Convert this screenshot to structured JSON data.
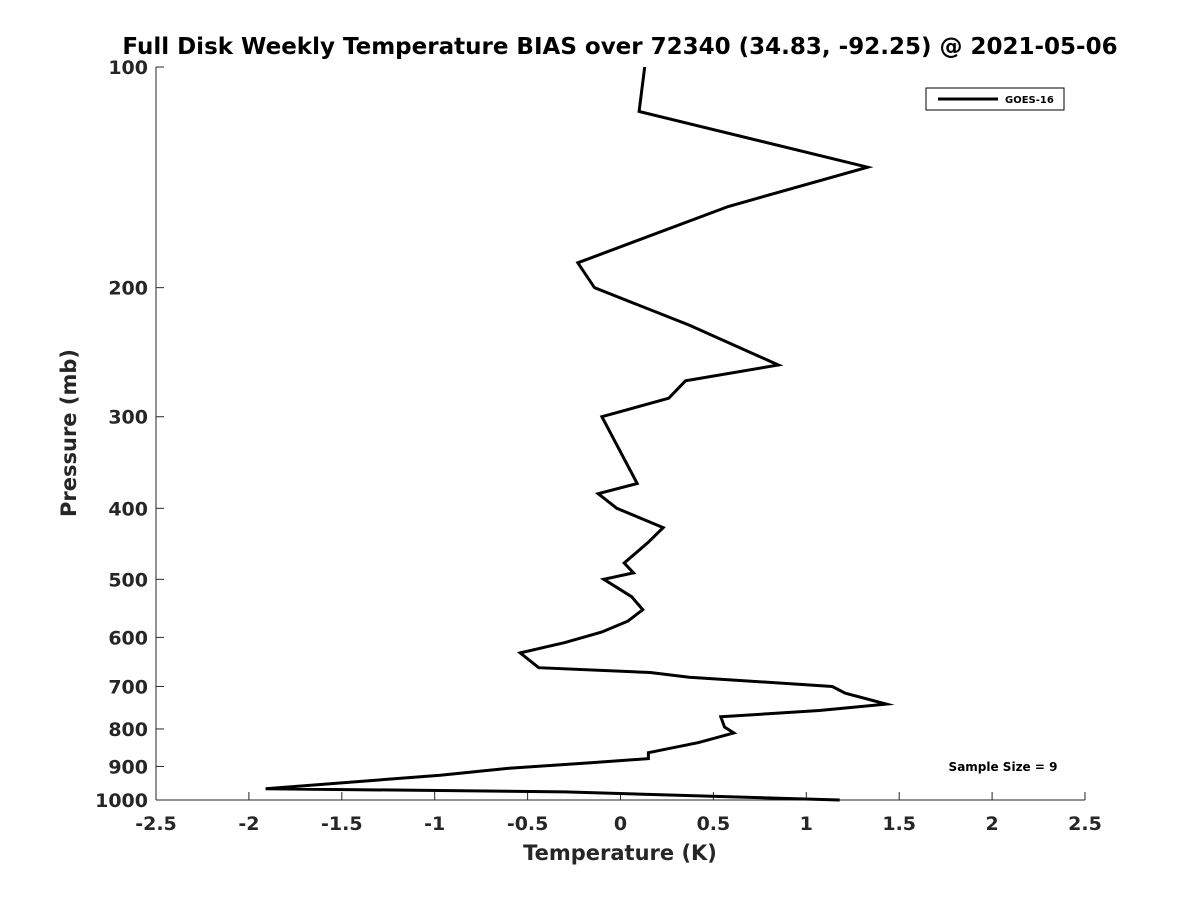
{
  "chart_data": {
    "type": "line",
    "title": "Full Disk Weekly Temperature BIAS over 72340 (34.83, -92.25) @ 2021-05-06",
    "xlabel": "Temperature (K)",
    "ylabel": "Pressure (mb)",
    "xlim": [
      -2.5,
      2.5
    ],
    "ylim": [
      100,
      1000
    ],
    "y_scale": "log",
    "y_reversed": true,
    "grid": false,
    "legend_position": "top-right",
    "x_ticks": [
      "-2.5",
      "-2",
      "-1.5",
      "-1",
      "-0.5",
      "0",
      "0.5",
      "1",
      "1.5",
      "2",
      "2.5"
    ],
    "y_ticks": [
      "100",
      "200",
      "300",
      "400",
      "500",
      "600",
      "700",
      "800",
      "900",
      "1000"
    ],
    "series": [
      {
        "name": "GOES-16",
        "color": "#000000",
        "points": [
          [
            0.13,
            100
          ],
          [
            0.1,
            115
          ],
          [
            1.33,
            137
          ],
          [
            0.58,
            155
          ],
          [
            -0.23,
            185
          ],
          [
            -0.14,
            200
          ],
          [
            0.37,
            225
          ],
          [
            0.85,
            255
          ],
          [
            0.35,
            268
          ],
          [
            0.26,
            283
          ],
          [
            -0.1,
            300
          ],
          [
            0.0,
            335
          ],
          [
            0.09,
            370
          ],
          [
            -0.12,
            382
          ],
          [
            -0.02,
            400
          ],
          [
            0.23,
            425
          ],
          [
            0.15,
            445
          ],
          [
            0.02,
            475
          ],
          [
            0.07,
            490
          ],
          [
            -0.09,
            500
          ],
          [
            0.06,
            528
          ],
          [
            0.12,
            550
          ],
          [
            0.04,
            570
          ],
          [
            -0.1,
            590
          ],
          [
            -0.3,
            610
          ],
          [
            -0.54,
            630
          ],
          [
            -0.44,
            660
          ],
          [
            0.16,
            670
          ],
          [
            0.37,
            680
          ],
          [
            1.14,
            700
          ],
          [
            1.21,
            715
          ],
          [
            1.43,
            740
          ],
          [
            1.07,
            755
          ],
          [
            0.54,
            770
          ],
          [
            0.56,
            795
          ],
          [
            0.61,
            810
          ],
          [
            0.42,
            835
          ],
          [
            0.15,
            862
          ],
          [
            0.15,
            878
          ],
          [
            -0.17,
            890
          ],
          [
            -0.6,
            905
          ],
          [
            -0.97,
            925
          ],
          [
            -1.91,
            965
          ],
          [
            -0.3,
            975
          ],
          [
            1.18,
            1000
          ]
        ]
      }
    ],
    "annotations": [
      {
        "text": "Sample Size = 9",
        "position": "bottom-right"
      }
    ]
  }
}
